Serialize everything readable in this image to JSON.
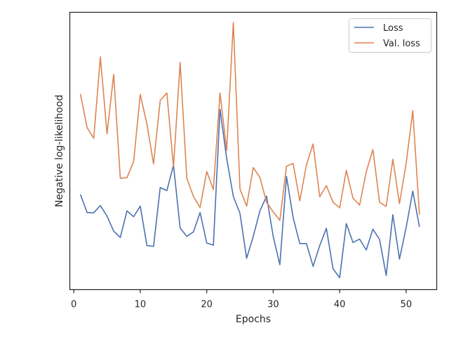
{
  "chart_data": {
    "type": "line",
    "xlabel": "Epochs",
    "ylabel": "Negative log-likelihood",
    "xlim": [
      -0.6,
      54.6
    ],
    "ylim": [
      0,
      100
    ],
    "xticks": [
      0,
      10,
      20,
      30,
      40,
      50
    ],
    "y_tick_labels_shown": false,
    "grid": false,
    "legend_position": "top-right",
    "x": [
      1,
      2,
      3,
      4,
      5,
      6,
      7,
      8,
      9,
      10,
      11,
      12,
      13,
      14,
      15,
      16,
      17,
      18,
      19,
      20,
      21,
      22,
      23,
      24,
      25,
      26,
      27,
      28,
      29,
      30,
      31,
      32,
      33,
      34,
      35,
      36,
      37,
      38,
      39,
      40,
      41,
      42,
      43,
      44,
      45,
      46,
      47,
      48,
      49,
      50,
      51,
      52
    ],
    "series": [
      {
        "name": "Loss",
        "color": "#4c72b0",
        "values": [
          34.3,
          27.8,
          27.7,
          30.3,
          26.5,
          21.1,
          18.8,
          28.4,
          26.3,
          30.1,
          15.9,
          15.6,
          36.8,
          35.7,
          44.9,
          22.2,
          19.2,
          20.8,
          27.8,
          16.8,
          16.0,
          65.0,
          47.3,
          33.6,
          27.5,
          11.3,
          19.2,
          28.4,
          33.7,
          19.2,
          9.0,
          40.8,
          25.9,
          16.6,
          16.6,
          8.4,
          15.9,
          22.1,
          7.5,
          4.3,
          23.8,
          17.0,
          18.2,
          14.3,
          21.8,
          18.1,
          5.1,
          27.0,
          11.0,
          22.4,
          35.5,
          22.6
        ]
      },
      {
        "name": "Val. loss",
        "color": "#dd8452",
        "values": [
          70.5,
          58.4,
          54.6,
          83.9,
          56.2,
          77.6,
          40.1,
          40.4,
          46.2,
          70.4,
          59.7,
          45.3,
          68.2,
          70.9,
          44.2,
          81.9,
          40.2,
          33.6,
          29.6,
          42.6,
          36.1,
          70.9,
          50.2,
          96.3,
          36.3,
          30.1,
          44.0,
          40.5,
          31.5,
          28.0,
          25.0,
          44.5,
          45.5,
          32.0,
          45.0,
          52.5,
          33.5,
          37.5,
          31.5,
          29.5,
          43.0,
          33.0,
          30.5,
          42.5,
          50.5,
          31.5,
          30.0,
          47.0,
          31.0,
          45.5,
          64.5,
          27.0
        ]
      }
    ]
  }
}
